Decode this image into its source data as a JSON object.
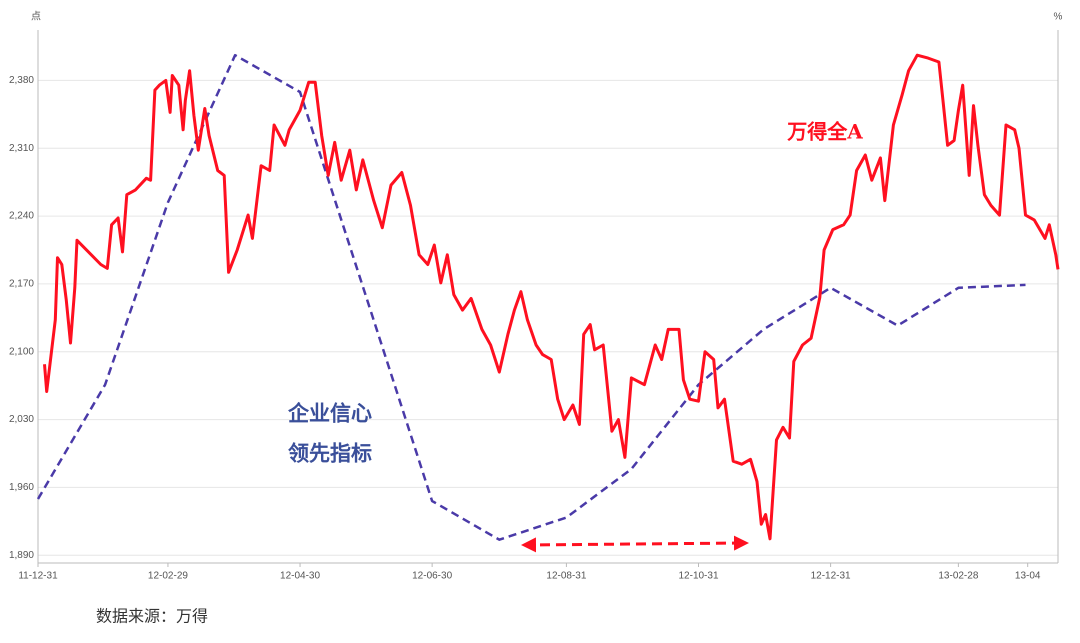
{
  "chart_data": {
    "type": "line",
    "y_unit": "点",
    "y2_unit": "%",
    "source": "数据来源：万得",
    "annotations": {
      "red": "万得全A",
      "blue": [
        "企业信心",
        "领先指标"
      ]
    },
    "xlim": [
      "11-12-31",
      "13-04-15"
    ],
    "xticks": [
      "11-12-31",
      "12-02-29",
      "12-04-30",
      "12-06-30",
      "12-08-31",
      "12-10-31",
      "12-12-31",
      "13-02-28",
      "13-04"
    ],
    "ylim": [
      1882,
      2432
    ],
    "yticks": [
      {
        "value": 1890,
        "label": "1,890"
      },
      {
        "value": 1960,
        "label": "1,960"
      },
      {
        "value": 2030,
        "label": "2,030"
      },
      {
        "value": 2100,
        "label": "2,100"
      },
      {
        "value": 2170,
        "label": "2,170"
      },
      {
        "value": 2240,
        "label": "2,240"
      },
      {
        "value": 2310,
        "label": "2,310"
      },
      {
        "value": 2380,
        "label": "2,380"
      }
    ],
    "grid": true,
    "series": [
      {
        "color": "#ff1020",
        "dash": false,
        "x": [
          "12-01-03",
          "12-01-04",
          "12-01-08",
          "12-01-09",
          "12-01-11",
          "12-01-13",
          "12-01-15",
          "12-01-17",
          "12-01-18",
          "12-01-29",
          "12-02-01",
          "12-02-03",
          "12-02-06",
          "12-02-08",
          "12-02-10",
          "12-02-14",
          "12-02-19",
          "12-02-21",
          "12-02-23",
          "12-02-25",
          "12-02-28",
          "12-03-01",
          "12-03-02",
          "12-03-05",
          "12-03-07",
          "12-03-08",
          "12-03-10",
          "12-03-12",
          "12-03-14",
          "12-03-17",
          "12-03-19",
          "12-03-23",
          "12-03-26",
          "12-03-28",
          "12-04-01",
          "12-04-06",
          "12-04-08",
          "12-04-12",
          "12-04-16",
          "12-04-18",
          "12-04-23",
          "12-04-25",
          "12-04-30",
          "12-05-04",
          "12-05-07",
          "12-05-10",
          "12-05-13",
          "12-05-16",
          "12-05-19",
          "12-05-23",
          "12-05-26",
          "12-05-29",
          "12-06-03",
          "12-06-07",
          "12-06-11",
          "12-06-16",
          "12-06-20",
          "12-06-24",
          "12-06-28",
          "12-07-01",
          "12-07-04",
          "12-07-07",
          "12-07-10",
          "12-07-14",
          "12-07-18",
          "12-07-23",
          "12-07-27",
          "12-07-31",
          "12-08-04",
          "12-08-07",
          "12-08-10",
          "12-08-13",
          "12-08-17",
          "12-08-20",
          "12-08-24",
          "12-08-27",
          "12-08-30",
          "12-09-03",
          "12-09-06",
          "12-09-08",
          "12-09-11",
          "12-09-13",
          "12-09-17",
          "12-09-21",
          "12-09-24",
          "12-09-27",
          "12-09-30",
          "12-10-06",
          "12-10-11",
          "12-10-14",
          "12-10-17",
          "12-10-22",
          "12-10-24",
          "12-10-27",
          "12-10-31",
          "12-11-03",
          "12-11-07",
          "12-11-09",
          "12-11-12",
          "12-11-16",
          "12-11-20",
          "12-11-24",
          "12-11-27",
          "12-11-29",
          "12-12-01",
          "12-12-03",
          "12-12-06",
          "12-12-09",
          "12-12-12",
          "12-12-14",
          "12-12-18",
          "12-12-22",
          "12-12-26",
          "12-12-28",
          "13-01-01",
          "13-01-06",
          "13-01-09",
          "13-01-12",
          "13-01-16",
          "13-01-19",
          "13-01-23",
          "13-01-25",
          "13-01-29",
          "13-02-02",
          "13-02-05",
          "13-02-09",
          "13-02-14",
          "13-02-19",
          "13-02-21",
          "13-02-23",
          "13-02-26",
          "13-02-28",
          "13-03-02",
          "13-03-05",
          "13-03-07",
          "13-03-09",
          "13-03-12",
          "13-03-15",
          "13-03-19",
          "13-03-22",
          "13-03-26",
          "13-03-28",
          "13-03-31",
          "13-04-04",
          "13-04-09",
          "13-04-11",
          "13-04-14",
          "13-04-15"
        ],
        "values": [
          2087,
          2059,
          2133,
          2197,
          2190,
          2154,
          2109,
          2166,
          2215,
          2190,
          2186,
          2231,
          2238,
          2203,
          2262,
          2267,
          2279,
          2277,
          2370,
          2375,
          2380,
          2347,
          2385,
          2375,
          2329,
          2359,
          2390,
          2344,
          2308,
          2351,
          2323,
          2287,
          2282,
          2182,
          2205,
          2241,
          2217,
          2292,
          2287,
          2334,
          2313,
          2329,
          2349,
          2378,
          2378,
          2323,
          2282,
          2316,
          2277,
          2308,
          2267,
          2298,
          2256,
          2228,
          2272,
          2285,
          2251,
          2200,
          2190,
          2210,
          2171,
          2200,
          2159,
          2143,
          2155,
          2123,
          2107,
          2079,
          2118,
          2143,
          2162,
          2133,
          2107,
          2097,
          2092,
          2051,
          2030,
          2045,
          2025,
          2118,
          2128,
          2102,
          2107,
          2018,
          2030,
          1991,
          2073,
          2066,
          2107,
          2092,
          2123,
          2123,
          2071,
          2051,
          2049,
          2100,
          2092,
          2042,
          2051,
          1987,
          1984,
          1989,
          1966,
          1922,
          1932,
          1907,
          2009,
          2022,
          2011,
          2090,
          2107,
          2114,
          2156,
          2205,
          2226,
          2231,
          2241,
          2287,
          2303,
          2277,
          2300,
          2256,
          2334,
          2365,
          2390,
          2406,
          2403,
          2399,
          2357,
          2313,
          2318,
          2349,
          2375,
          2282,
          2354,
          2313,
          2262,
          2251,
          2241,
          2334,
          2329,
          2310,
          2241,
          2236,
          2217,
          2231,
          2200,
          2185
        ]
      },
      {
        "color": "#4a3aa8",
        "dash": true,
        "x": [
          "11-12-31",
          "12-01-31",
          "12-02-29",
          "12-03-31",
          "12-04-30",
          "12-06-30",
          "12-07-31",
          "12-08-31",
          "12-09-30",
          "12-10-31",
          "12-11-30",
          "12-12-31",
          "13-01-31",
          "13-02-28",
          "13-03-31"
        ],
        "values": [
          1948,
          2066,
          2254,
          2406,
          2368,
          1946,
          1906,
          1929,
          1979,
          2066,
          2123,
          2166,
          2127,
          2166,
          2169
        ]
      }
    ]
  }
}
